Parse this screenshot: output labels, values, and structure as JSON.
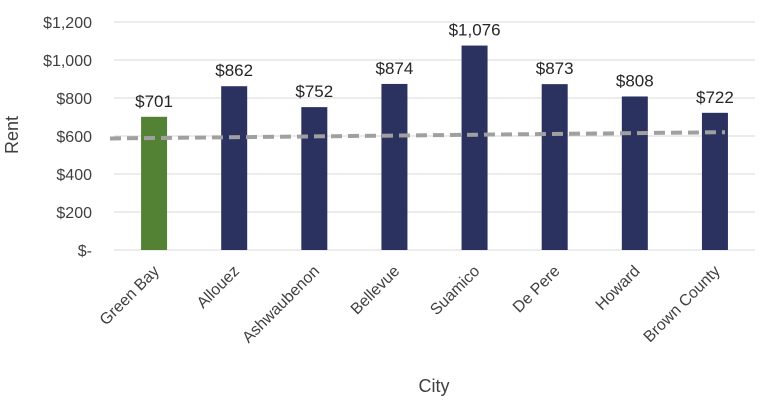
{
  "chart_data": {
    "type": "bar",
    "title": "",
    "xlabel": "City",
    "ylabel": "Rent",
    "categories": [
      "Green Bay",
      "Allouez",
      "Ashwaubenon",
      "Bellevue",
      "Suamico",
      "De Pere",
      "Howard",
      "Brown County"
    ],
    "values": [
      701,
      862,
      752,
      874,
      1076,
      873,
      808,
      722
    ],
    "data_labels": [
      "$701",
      "$862",
      "$752",
      "$874",
      "$1,076",
      "$873",
      "$808",
      "$722"
    ],
    "ylim": [
      0,
      1200
    ],
    "yticks": [
      0,
      200,
      400,
      600,
      800,
      1000,
      1200
    ],
    "ytick_labels": [
      "$-",
      "$200",
      "$400",
      "$600",
      "$800",
      "$1,000",
      "$1,200"
    ],
    "grid": true,
    "legend": "none",
    "trendline": {
      "type": "linear",
      "style": "dashed",
      "start_value": 587,
      "end_value": 620
    },
    "colors": {
      "highlight": "#548235",
      "bar": "#2b3260",
      "grid": "#d9d9d9",
      "trendline": "#a0a0a0"
    }
  }
}
